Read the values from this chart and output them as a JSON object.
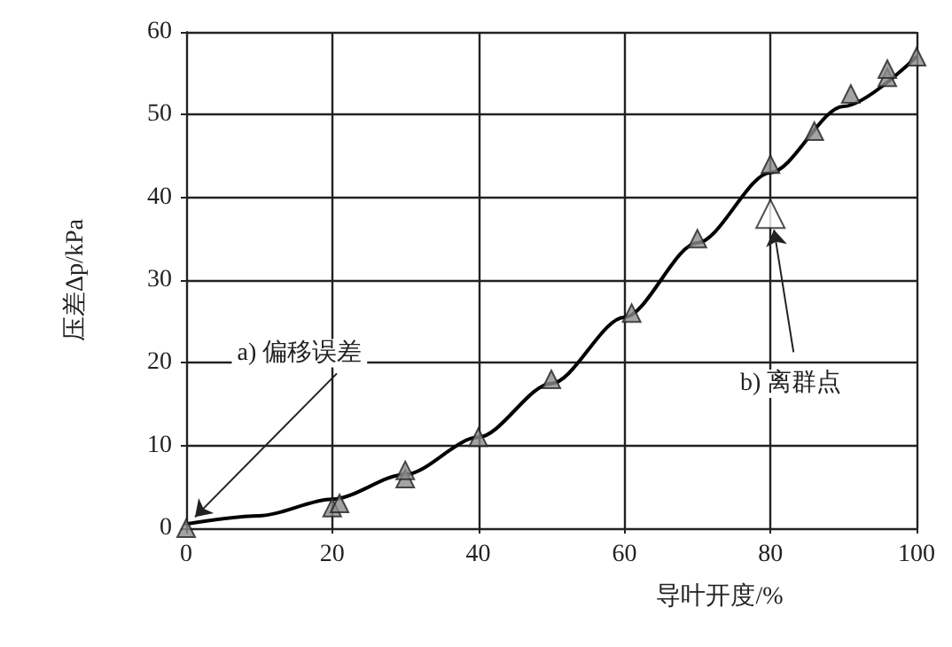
{
  "chart_data": {
    "type": "scatter",
    "xlabel": "导叶开度/%",
    "ylabel": "压差Δp/kPa",
    "xlim": [
      0,
      100
    ],
    "xticks": [
      0,
      20,
      40,
      60,
      80,
      100
    ],
    "ylim": [
      0,
      60
    ],
    "yticks": [
      0,
      10,
      20,
      30,
      40,
      50,
      60
    ],
    "grid": true,
    "marker": "triangle",
    "series": [
      {
        "type": "line",
        "color": "#000000",
        "marker": "none",
        "x": [
          0,
          10,
          20,
          30,
          40,
          50,
          60,
          70,
          80,
          90,
          100
        ],
        "values": [
          0.5,
          1.5,
          3.5,
          6.5,
          11,
          17.5,
          25.5,
          34.5,
          43,
          51,
          57
        ]
      },
      {
        "color": "#8c8c8c",
        "x": [
          0,
          20,
          21,
          30,
          30,
          40,
          50,
          61,
          70,
          80,
          86,
          91,
          96,
          96,
          100
        ],
        "values": [
          0,
          2.5,
          3,
          6,
          7,
          11,
          18,
          26,
          35,
          44,
          48,
          52.5,
          54.5,
          55.5,
          57
        ]
      },
      {
        "color": "#ffffff",
        "x": [
          80
        ],
        "values": [
          38
        ]
      }
    ],
    "annotations": [
      {
        "text": "a) 偏移误差",
        "x": 0,
        "y": 0.5
      },
      {
        "text": "b) 离群点",
        "x": 80,
        "y": 38
      }
    ]
  }
}
